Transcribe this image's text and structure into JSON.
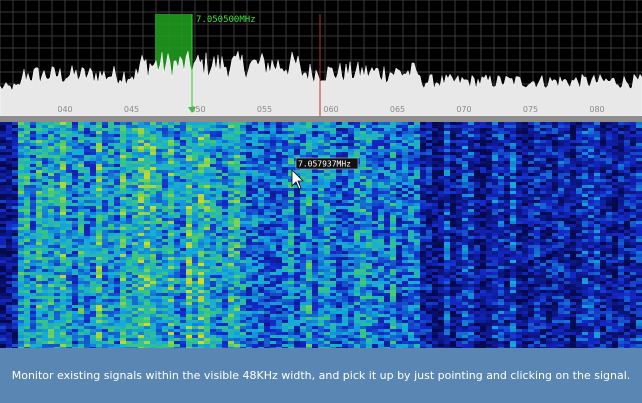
{
  "spectrum": {
    "marker_label": "7.050500MHz",
    "tick_labels": [
      "040",
      "045",
      "050",
      "055",
      "060",
      "065",
      "070",
      "075",
      "080"
    ]
  },
  "waterfall": {
    "cursor_label": "7.057937MHz"
  },
  "caption": "Monitor existing signals within the visible 48KHz width, and pick it up by just pointing and clicking on the signal."
}
